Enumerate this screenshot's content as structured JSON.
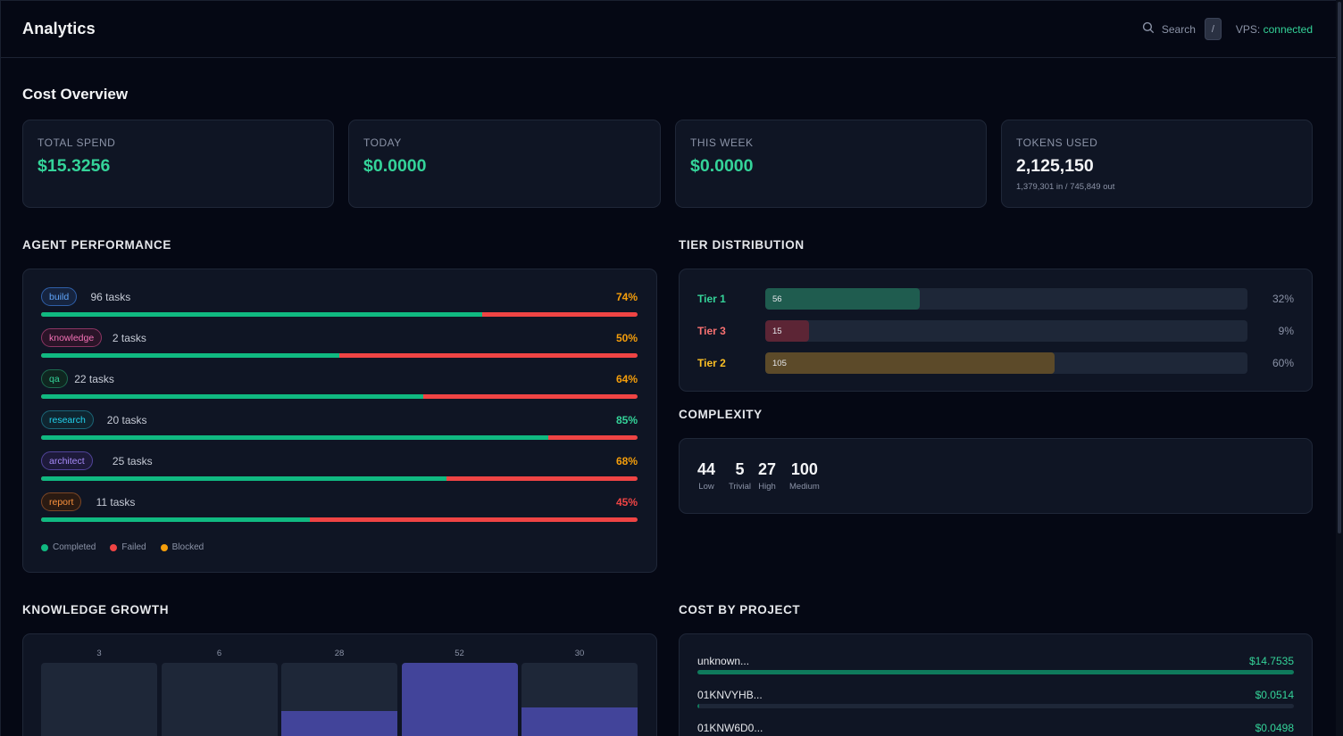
{
  "header": {
    "title": "Analytics",
    "search_label": "Search",
    "shortcut": "/",
    "vps_label": "VPS:",
    "vps_status": "connected"
  },
  "cost_overview": {
    "title": "Cost Overview",
    "stats": [
      {
        "label": "TOTAL SPEND",
        "value": "$15.3256"
      },
      {
        "label": "TODAY",
        "value": "$0.0000"
      },
      {
        "label": "THIS WEEK",
        "value": "$0.0000"
      },
      {
        "label": "TOKENS USED",
        "value": "2,125,150",
        "sub": "1,379,301 in / 745,849 out"
      }
    ]
  },
  "agent_performance": {
    "title": "AGENT PERFORMANCE",
    "agents": [
      {
        "name": "build",
        "tasks": "96 tasks",
        "pct": "74%",
        "completed": 0.74,
        "color": "#60a5fa",
        "border": "#2f5fa8",
        "bg": "#16243f",
        "pct_color": "#f59e0b"
      },
      {
        "name": "knowledge",
        "tasks": "2 tasks",
        "pct": "50%",
        "completed": 0.5,
        "color": "#f472b6",
        "border": "#8c3563",
        "bg": "#2a1428",
        "pct_color": "#f59e0b"
      },
      {
        "name": "qa",
        "tasks": "22 tasks",
        "pct": "64%",
        "completed": 0.64,
        "color": "#34d399",
        "border": "#1d6b4f",
        "bg": "#0f2620",
        "pct_color": "#f59e0b"
      },
      {
        "name": "research",
        "tasks": "20 tasks",
        "pct": "85%",
        "completed": 0.85,
        "color": "#22d3ee",
        "border": "#1b6577",
        "bg": "#0f2530",
        "pct_color": "#34d399"
      },
      {
        "name": "architect",
        "tasks": "25 tasks",
        "pct": "68%",
        "completed": 0.68,
        "color": "#a78bfa",
        "border": "#51449a",
        "bg": "#1d1a3a",
        "pct_color": "#f59e0b"
      },
      {
        "name": "report",
        "tasks": "11 tasks",
        "pct": "45%",
        "completed": 0.45,
        "color": "#fb923c",
        "border": "#7c4625",
        "bg": "#2a1a12",
        "pct_color": "#ef4444"
      }
    ],
    "legend": [
      {
        "label": "Completed",
        "color": "#10b981"
      },
      {
        "label": "Failed",
        "color": "#ef4444"
      },
      {
        "label": "Blocked",
        "color": "#f59e0b"
      }
    ]
  },
  "tier_distribution": {
    "title": "TIER DISTRIBUTION",
    "tiers": [
      {
        "name": "Tier 1",
        "count": "56",
        "pct": "32%",
        "fraction": 0.32,
        "color": "#34d399",
        "fill": "#1f5c4f"
      },
      {
        "name": "Tier 3",
        "count": "15",
        "pct": "9%",
        "fraction": 0.09,
        "color": "#f87171",
        "fill": "#5c2535"
      },
      {
        "name": "Tier 2",
        "count": "105",
        "pct": "60%",
        "fraction": 0.6,
        "color": "#fbbf24",
        "fill": "#5c4a29"
      }
    ]
  },
  "complexity": {
    "title": "COMPLEXITY",
    "items": [
      {
        "n": "44",
        "label": "Low"
      },
      {
        "n": "5",
        "label": "Trivial"
      },
      {
        "n": "27",
        "label": "High"
      },
      {
        "n": "100",
        "label": "Medium"
      }
    ]
  },
  "knowledge_growth": {
    "title": "KNOWLEDGE GROWTH",
    "values": [
      "3",
      "6",
      "28",
      "52",
      "30"
    ],
    "fractions": [
      0.0,
      0.0,
      0.4,
      1.0,
      0.45
    ]
  },
  "cost_by_project": {
    "title": "COST BY PROJECT",
    "projects": [
      {
        "name": "unknown...",
        "value": "$14.7535",
        "fraction": 1.0
      },
      {
        "name": "01KNVYHB...",
        "value": "$0.0514",
        "fraction": 0.0035
      },
      {
        "name": "01KNW6D0...",
        "value": "$0.0498",
        "fraction": 0.0034
      }
    ]
  }
}
